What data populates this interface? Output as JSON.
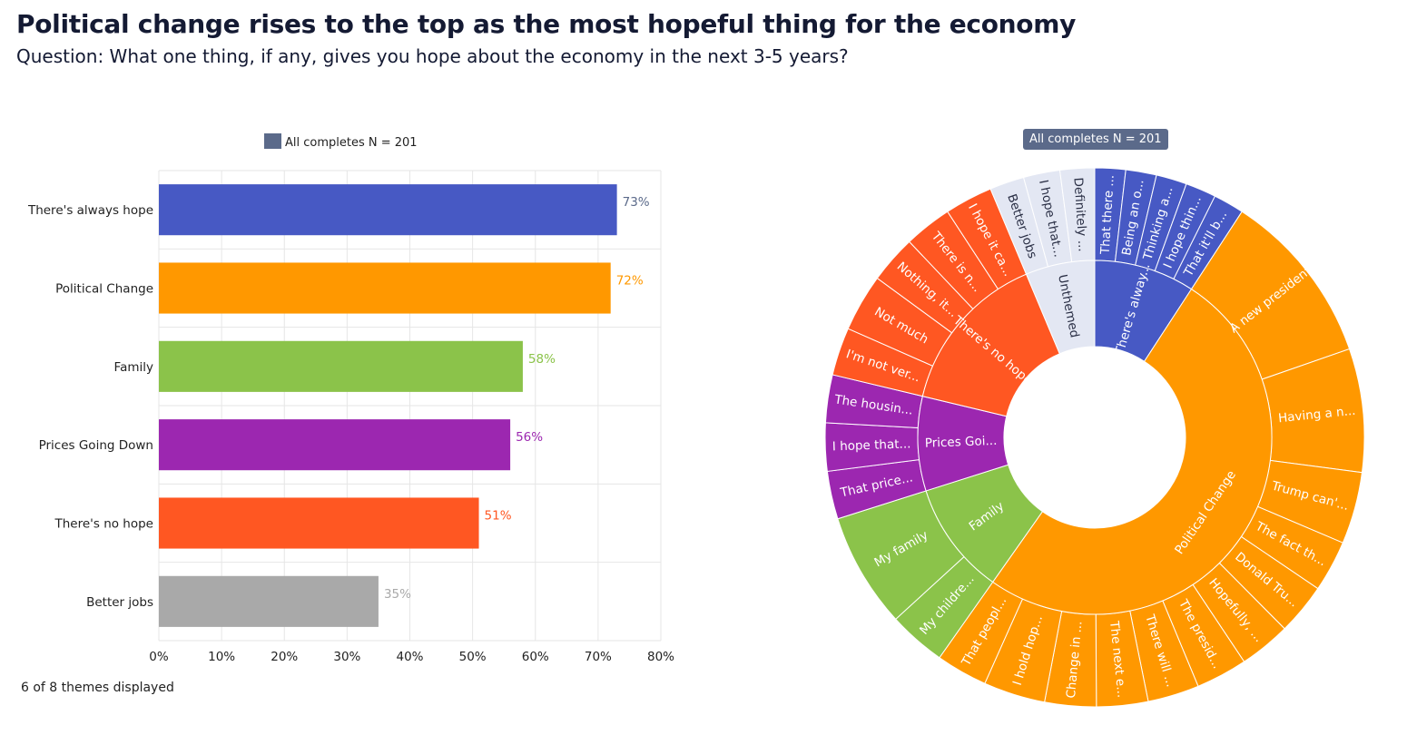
{
  "header": {
    "title": "Political change rises to the top as the most hopeful thing for the economy",
    "subtitle": "Question: What one thing, if any, gives you hope about the economy in the next 3-5 years?"
  },
  "footnote": "6 of 8 themes displayed",
  "chart_data": [
    {
      "type": "bar",
      "orientation": "horizontal",
      "legend": {
        "label": "All completes N = 201",
        "color": "#5b6a8a",
        "placement": "top"
      },
      "categories": [
        "There's always hope",
        "Political Change",
        "Family",
        "Prices Going Down",
        "There's no hope",
        "Better jobs"
      ],
      "values": [
        73,
        72,
        58,
        56,
        51,
        35
      ],
      "data_labels": [
        "73%",
        "72%",
        "58%",
        "56%",
        "51%",
        "35%"
      ],
      "colors": [
        "#4759c4",
        "#ff9800",
        "#8bc34a",
        "#9c27b0",
        "#ff5722",
        "#a9a9a9"
      ],
      "label_colors": [
        "#5b6a8a",
        "#ff9800",
        "#8bc34a",
        "#9c27b0",
        "#ff5722",
        "#a9a9a9"
      ],
      "xlim": [
        0,
        80
      ],
      "x_ticks": [
        0,
        10,
        20,
        30,
        40,
        50,
        60,
        70,
        80
      ],
      "x_tick_labels": [
        "0%",
        "10%",
        "20%",
        "30%",
        "40%",
        "50%",
        "60%",
        "70%",
        "80%"
      ],
      "grid": true
    },
    {
      "type": "sunburst",
      "legend": {
        "label": "All completes N = 201",
        "placement": "top"
      },
      "inner": [
        {
          "label": "There's alway...",
          "value": 8,
          "color": "#4759c4"
        },
        {
          "label": "Political Change",
          "value": 44,
          "color": "#ff9800"
        },
        {
          "label": "Family",
          "value": 9,
          "color": "#8bc34a"
        },
        {
          "label": "Prices Goi...",
          "value": 7.5,
          "color": "#9c27b0"
        },
        {
          "label": "There's no hope",
          "value": 13,
          "color": "#ff5722"
        },
        {
          "label": "Unthemed",
          "value": 5.5,
          "color": "#e3e7f3"
        }
      ],
      "outer": [
        {
          "parent": 0,
          "label": "That there ...",
          "value": 1.6
        },
        {
          "parent": 0,
          "label": "Being an o...",
          "value": 1.6
        },
        {
          "parent": 0,
          "label": "Thinking a...",
          "value": 1.6
        },
        {
          "parent": 0,
          "label": "I hope thin...",
          "value": 1.6
        },
        {
          "parent": 0,
          "label": "That it'll b...",
          "value": 1.6
        },
        {
          "parent": 1,
          "label": "A new president",
          "value": 8.5
        },
        {
          "parent": 1,
          "label": "Having a n...",
          "value": 6
        },
        {
          "parent": 1,
          "label": "Trump can'...",
          "value": 3.5
        },
        {
          "parent": 1,
          "label": "The fact th...",
          "value": 2.5
        },
        {
          "parent": 1,
          "label": "Donald Tru...",
          "value": 2.5
        },
        {
          "parent": 1,
          "label": "Hopefully, ...",
          "value": 2.5
        },
        {
          "parent": 1,
          "label": "The presid...",
          "value": 2.5
        },
        {
          "parent": 1,
          "label": "There will ...",
          "value": 2.5
        },
        {
          "parent": 1,
          "label": "The next e...",
          "value": 2.5
        },
        {
          "parent": 1,
          "label": "Change in ...",
          "value": 2.5
        },
        {
          "parent": 1,
          "label": "I hold hop...",
          "value": 3
        },
        {
          "parent": 1,
          "label": "That peopl...",
          "value": 2.5
        },
        {
          "parent": 2,
          "label": "My childre...",
          "value": 3
        },
        {
          "parent": 2,
          "label": "My family",
          "value": 6
        },
        {
          "parent": 3,
          "label": "That price...",
          "value": 2.5
        },
        {
          "parent": 3,
          "label": "I hope that...",
          "value": 2.5
        },
        {
          "parent": 3,
          "label": "The housin...",
          "value": 2.5
        },
        {
          "parent": 4,
          "label": "I'm not ver...",
          "value": 2.5
        },
        {
          "parent": 4,
          "label": "Not much",
          "value": 3
        },
        {
          "parent": 4,
          "label": "Nothing, it...",
          "value": 2.5
        },
        {
          "parent": 4,
          "label": "There is n...",
          "value": 2.5
        },
        {
          "parent": 4,
          "label": "I hope it ca...",
          "value": 2.5
        },
        {
          "parent": 5,
          "label": "Better jobs",
          "value": 1.8
        },
        {
          "parent": 5,
          "label": "I hope that...",
          "value": 1.9
        },
        {
          "parent": 5,
          "label": "Definitely ...",
          "value": 1.8
        }
      ]
    }
  ]
}
